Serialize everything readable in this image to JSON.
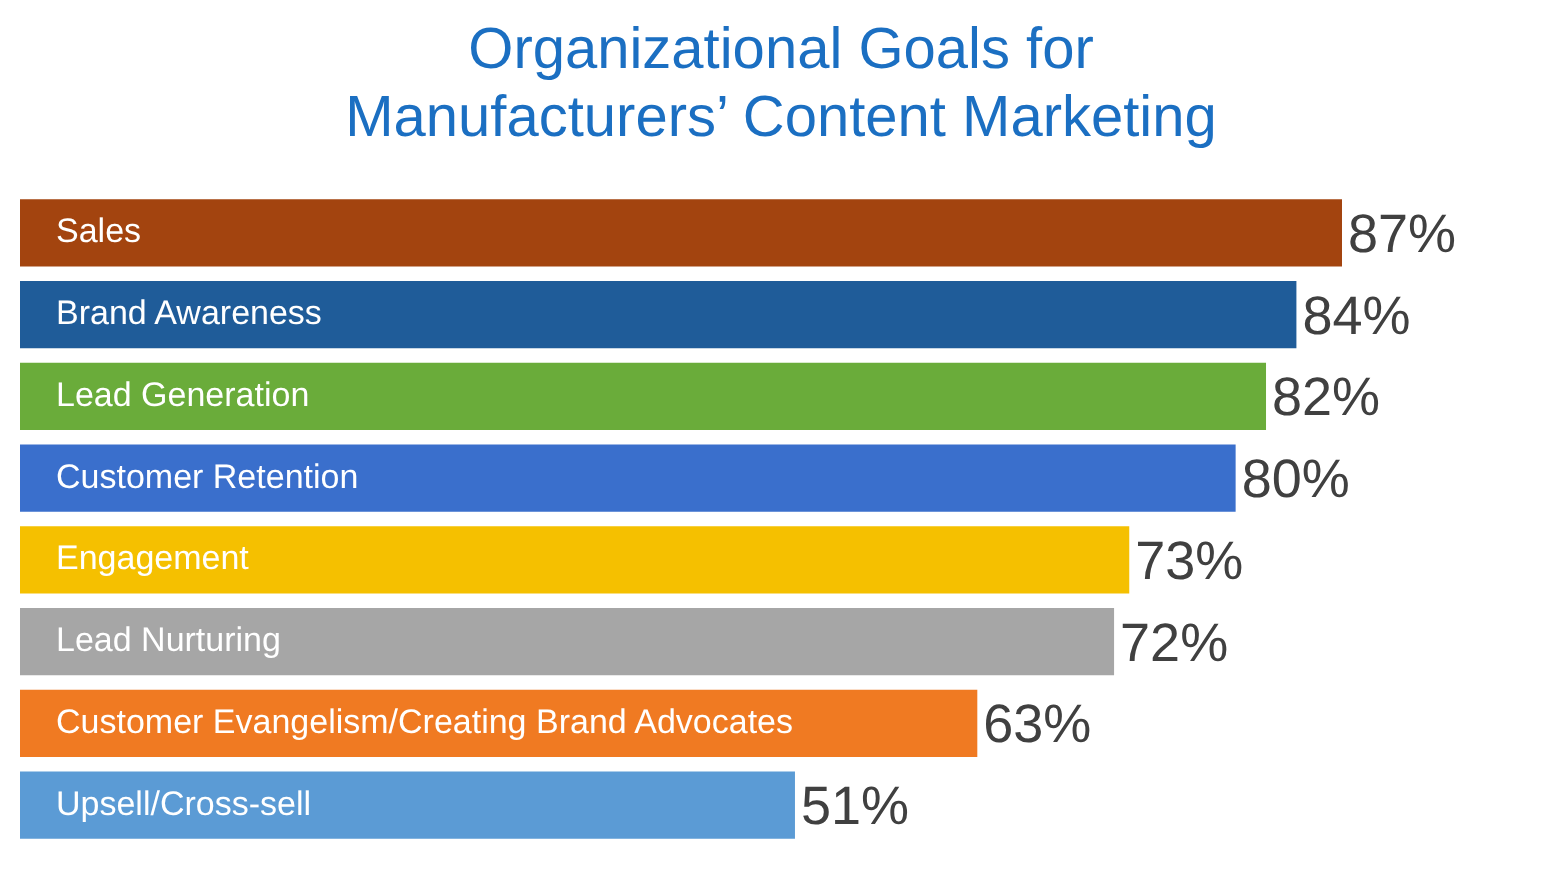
{
  "chart_data": {
    "type": "bar",
    "orientation": "horizontal",
    "title": "Organizational Goals for Manufacturers’ Content Marketing",
    "categories": [
      "Sales",
      "Brand Awareness",
      "Lead Generation",
      "Customer Retention",
      "Engagement",
      "Lead Nurturing",
      "Customer Evangelism/Creating Brand Advocates",
      "Upsell/Cross-sell"
    ],
    "values": [
      87,
      84,
      82,
      80,
      73,
      72,
      63,
      51
    ],
    "value_labels": [
      "87%",
      "84%",
      "82%",
      "80%",
      "73%",
      "72%",
      "63%",
      "51%"
    ],
    "colors": [
      "#a3440f",
      "#1f5c99",
      "#6aac3a",
      "#3a6fcc",
      "#f5c000",
      "#a6a6a6",
      "#f07a22",
      "#5b9bd5"
    ],
    "tick_labels": false,
    "grid": false,
    "legend": false
  }
}
